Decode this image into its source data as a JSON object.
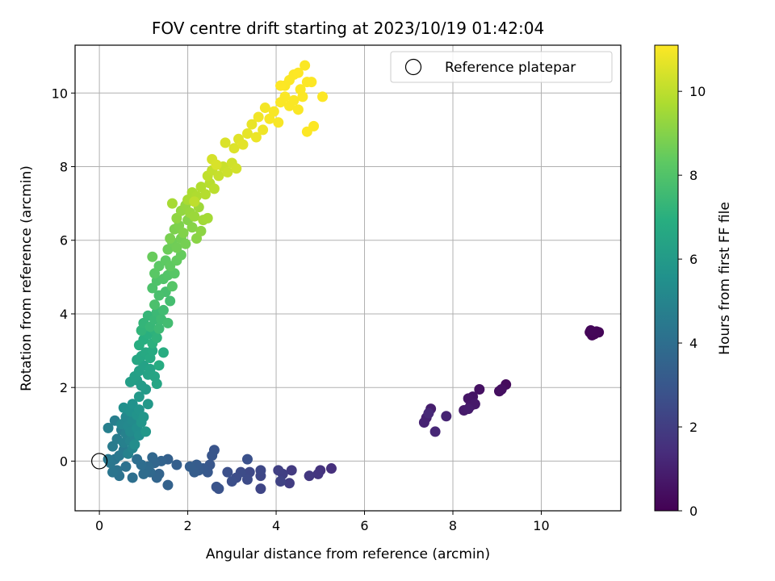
{
  "chart_data": {
    "type": "scatter",
    "title": "FOV centre drift starting at 2023/10/19 01:42:04",
    "xlabel": "Angular distance from reference (arcmin)",
    "ylabel": "Rotation from reference (arcmin)",
    "xlim": [
      -0.55,
      11.8
    ],
    "ylim": [
      -1.35,
      11.3
    ],
    "xticks": [
      0,
      2,
      4,
      6,
      8,
      10
    ],
    "yticks": [
      0,
      2,
      4,
      6,
      8,
      10
    ],
    "grid": true,
    "legend": {
      "placement": "top-right",
      "entries": [
        "Reference platepar"
      ]
    },
    "reference_point": {
      "x": 0,
      "y": 0
    },
    "colorbar": {
      "label": "Hours from first FF file",
      "range": [
        0,
        11.1
      ],
      "ticks": [
        0,
        2,
        4,
        6,
        8,
        10
      ],
      "colormap": "viridis"
    },
    "series": [
      {
        "points": [
          [
            11.1,
            3.5,
            0.05
          ],
          [
            11.2,
            3.45,
            0.08
          ],
          [
            11.3,
            3.5,
            0.1
          ],
          [
            11.15,
            3.42,
            0.12
          ],
          [
            11.25,
            3.52,
            0.15
          ],
          [
            11.12,
            3.55,
            0.18
          ],
          [
            9.2,
            2.08,
            0.3
          ],
          [
            9.05,
            1.9,
            0.4
          ],
          [
            9.1,
            1.95,
            0.45
          ],
          [
            8.6,
            1.95,
            0.5
          ],
          [
            8.45,
            1.75,
            0.6
          ],
          [
            8.35,
            1.7,
            0.65
          ],
          [
            8.4,
            1.5,
            0.7
          ],
          [
            8.5,
            1.55,
            0.75
          ],
          [
            8.25,
            1.38,
            0.8
          ],
          [
            8.35,
            1.42,
            0.85
          ],
          [
            7.5,
            1.42,
            0.9
          ],
          [
            7.4,
            1.18,
            1.0
          ],
          [
            7.35,
            1.05,
            1.05
          ],
          [
            7.85,
            1.22,
            1.1
          ],
          [
            7.6,
            0.8,
            1.2
          ],
          [
            7.45,
            1.3,
            1.25
          ],
          [
            5.25,
            -0.2,
            1.5
          ],
          [
            5.0,
            -0.25,
            1.6
          ],
          [
            4.95,
            -0.35,
            1.7
          ],
          [
            4.75,
            -0.4,
            1.8
          ],
          [
            4.35,
            -0.25,
            1.9
          ],
          [
            4.3,
            -0.6,
            2.0
          ],
          [
            4.15,
            -0.35,
            2.05
          ],
          [
            4.05,
            -0.25,
            2.1
          ],
          [
            4.1,
            -0.55,
            2.2
          ],
          [
            3.65,
            -0.75,
            2.3
          ],
          [
            3.65,
            -0.4,
            2.35
          ],
          [
            3.65,
            -0.25,
            2.4
          ],
          [
            3.4,
            -0.3,
            2.45
          ],
          [
            3.35,
            -0.5,
            2.5
          ],
          [
            3.2,
            -0.3,
            2.55
          ],
          [
            3.1,
            -0.45,
            2.6
          ],
          [
            3.0,
            -0.55,
            2.65
          ],
          [
            2.9,
            -0.3,
            2.7
          ],
          [
            3.35,
            0.05,
            2.75
          ],
          [
            2.7,
            -0.75,
            2.8
          ],
          [
            2.65,
            -0.7,
            2.85
          ],
          [
            2.6,
            0.3,
            2.9
          ],
          [
            2.55,
            0.15,
            2.95
          ],
          [
            2.5,
            -0.1,
            3.0
          ],
          [
            2.45,
            -0.3,
            3.05
          ],
          [
            2.35,
            -0.2,
            3.1
          ],
          [
            2.25,
            -0.25,
            3.15
          ],
          [
            2.2,
            -0.1,
            3.2
          ],
          [
            2.15,
            -0.3,
            3.25
          ],
          [
            2.05,
            -0.15,
            3.3
          ],
          [
            1.75,
            -0.1,
            3.35
          ],
          [
            1.55,
            0.05,
            3.4
          ],
          [
            1.55,
            -0.65,
            3.45
          ],
          [
            1.4,
            0.0,
            3.5
          ],
          [
            1.35,
            -0.35,
            3.55
          ],
          [
            1.3,
            -0.45,
            3.6
          ],
          [
            1.25,
            -0.05,
            3.65
          ],
          [
            1.2,
            0.1,
            3.7
          ],
          [
            1.15,
            -0.3,
            3.75
          ],
          [
            1.1,
            -0.15,
            3.8
          ],
          [
            1.05,
            -0.25,
            3.85
          ],
          [
            1.0,
            -0.35,
            3.9
          ],
          [
            0.95,
            -0.1,
            3.95
          ],
          [
            0.85,
            0.05,
            4.0
          ],
          [
            0.75,
            -0.45,
            4.05
          ],
          [
            0.6,
            -0.15,
            4.1
          ],
          [
            0.45,
            -0.4,
            4.15
          ],
          [
            0.4,
            -0.25,
            4.2
          ],
          [
            0.35,
            0.05,
            4.25
          ],
          [
            0.3,
            -0.3,
            4.3
          ],
          [
            0.25,
            -0.05,
            4.35
          ],
          [
            0.2,
            0.05,
            4.4
          ],
          [
            0.45,
            0.15,
            4.45
          ],
          [
            0.55,
            0.3,
            4.5
          ],
          [
            0.3,
            0.4,
            4.55
          ],
          [
            0.4,
            0.6,
            4.6
          ],
          [
            0.5,
            0.85,
            4.65
          ],
          [
            0.35,
            1.1,
            4.7
          ],
          [
            0.2,
            0.9,
            4.75
          ],
          [
            0.55,
            0.5,
            4.8
          ],
          [
            0.6,
            0.75,
            4.85
          ],
          [
            0.65,
            0.2,
            4.9
          ],
          [
            0.7,
            0.55,
            4.95
          ],
          [
            0.75,
            0.35,
            5.0
          ],
          [
            0.8,
            0.65,
            5.05
          ],
          [
            0.5,
            1.0,
            5.1
          ],
          [
            0.6,
            1.2,
            5.15
          ],
          [
            0.65,
            0.95,
            5.2
          ],
          [
            0.7,
            0.8,
            5.25
          ],
          [
            0.75,
            1.1,
            5.3
          ],
          [
            0.8,
            0.45,
            5.35
          ],
          [
            0.85,
            0.9,
            5.4
          ],
          [
            0.9,
            0.7,
            5.45
          ],
          [
            0.55,
            1.45,
            5.5
          ],
          [
            0.7,
            1.35,
            5.55
          ],
          [
            0.75,
            1.55,
            5.6
          ],
          [
            0.85,
            1.25,
            5.65
          ],
          [
            0.9,
            1.4,
            5.7
          ],
          [
            0.95,
            1.05,
            5.75
          ],
          [
            1.0,
            1.2,
            5.8
          ],
          [
            1.05,
            0.8,
            5.85
          ],
          [
            1.1,
            1.55,
            5.9
          ],
          [
            0.9,
            1.75,
            5.95
          ],
          [
            1.05,
            1.95,
            6.0
          ],
          [
            0.95,
            2.05,
            6.05
          ],
          [
            0.85,
            2.2,
            6.1
          ],
          [
            0.7,
            2.15,
            6.15
          ],
          [
            0.8,
            2.3,
            6.2
          ],
          [
            0.9,
            2.45,
            6.25
          ],
          [
            1.0,
            2.6,
            6.3
          ],
          [
            1.1,
            2.35,
            6.35
          ],
          [
            1.15,
            2.5,
            6.4
          ],
          [
            1.25,
            2.3,
            6.45
          ],
          [
            1.3,
            2.1,
            6.5
          ],
          [
            0.85,
            2.75,
            6.55
          ],
          [
            0.95,
            2.85,
            6.6
          ],
          [
            1.05,
            2.95,
            6.65
          ],
          [
            1.15,
            2.8,
            6.7
          ],
          [
            1.2,
            3.0,
            6.75
          ],
          [
            1.35,
            2.6,
            6.8
          ],
          [
            1.45,
            2.95,
            6.85
          ],
          [
            0.9,
            3.15,
            6.9
          ],
          [
            1.0,
            3.3,
            6.95
          ],
          [
            1.1,
            3.45,
            7.0
          ],
          [
            1.2,
            3.2,
            7.05
          ],
          [
            1.25,
            3.55,
            7.1
          ],
          [
            1.3,
            3.35,
            7.15
          ],
          [
            0.95,
            3.55,
            7.2
          ],
          [
            1.0,
            3.75,
            7.25
          ],
          [
            1.1,
            3.95,
            7.3
          ],
          [
            1.15,
            3.65,
            7.35
          ],
          [
            1.25,
            3.85,
            7.4
          ],
          [
            1.3,
            4.05,
            7.45
          ],
          [
            1.35,
            3.6,
            7.5
          ],
          [
            1.4,
            3.85,
            7.55
          ],
          [
            1.45,
            4.1,
            7.6
          ],
          [
            1.55,
            3.75,
            7.65
          ],
          [
            1.6,
            4.35,
            7.7
          ],
          [
            1.5,
            4.6,
            7.75
          ],
          [
            1.35,
            4.5,
            7.8
          ],
          [
            1.25,
            4.25,
            7.85
          ],
          [
            1.2,
            4.7,
            7.9
          ],
          [
            1.3,
            4.9,
            7.95
          ],
          [
            1.45,
            4.95,
            8.0
          ],
          [
            1.55,
            5.05,
            8.05
          ],
          [
            1.65,
            4.75,
            8.1
          ],
          [
            1.7,
            5.1,
            8.15
          ],
          [
            1.25,
            5.1,
            8.2
          ],
          [
            1.35,
            5.3,
            8.25
          ],
          [
            1.5,
            5.45,
            8.3
          ],
          [
            1.6,
            5.3,
            8.35
          ],
          [
            1.75,
            5.45,
            8.4
          ],
          [
            1.85,
            5.6,
            8.45
          ],
          [
            1.2,
            5.55,
            8.5
          ],
          [
            1.55,
            5.75,
            8.55
          ],
          [
            1.65,
            5.95,
            8.6
          ],
          [
            1.75,
            5.8,
            8.65
          ],
          [
            1.85,
            6.05,
            8.7
          ],
          [
            1.95,
            5.9,
            8.75
          ],
          [
            1.6,
            6.05,
            8.8
          ],
          [
            1.7,
            6.3,
            8.85
          ],
          [
            1.8,
            6.4,
            8.9
          ],
          [
            1.9,
            6.2,
            8.95
          ],
          [
            2.0,
            6.55,
            9.0
          ],
          [
            2.1,
            6.35,
            9.05
          ],
          [
            2.2,
            6.05,
            9.1
          ],
          [
            2.3,
            6.25,
            9.15
          ],
          [
            1.75,
            6.6,
            9.2
          ],
          [
            1.85,
            6.8,
            9.25
          ],
          [
            1.95,
            6.95,
            9.3
          ],
          [
            2.05,
            6.75,
            9.35
          ],
          [
            2.15,
            6.65,
            9.4
          ],
          [
            2.25,
            6.9,
            9.45
          ],
          [
            2.35,
            6.55,
            9.5
          ],
          [
            2.45,
            6.6,
            9.55
          ],
          [
            1.65,
            7.0,
            9.6
          ],
          [
            2.0,
            7.1,
            9.65
          ],
          [
            2.1,
            7.3,
            9.7
          ],
          [
            2.2,
            7.2,
            9.75
          ],
          [
            2.3,
            7.45,
            9.8
          ],
          [
            2.4,
            7.25,
            9.85
          ],
          [
            2.5,
            7.55,
            9.9
          ],
          [
            2.6,
            7.4,
            9.95
          ],
          [
            2.15,
            7.05,
            10.0
          ],
          [
            2.45,
            7.75,
            10.05
          ],
          [
            2.55,
            7.9,
            10.1
          ],
          [
            2.7,
            7.75,
            10.15
          ],
          [
            2.8,
            8.0,
            10.2
          ],
          [
            2.9,
            7.85,
            10.25
          ],
          [
            3.0,
            8.1,
            10.3
          ],
          [
            3.1,
            7.95,
            10.35
          ],
          [
            2.55,
            8.2,
            10.4
          ],
          [
            2.65,
            8.05,
            10.45
          ],
          [
            2.85,
            8.65,
            10.5
          ],
          [
            3.05,
            8.5,
            10.55
          ],
          [
            3.15,
            8.75,
            10.6
          ],
          [
            3.25,
            8.6,
            10.65
          ],
          [
            3.35,
            8.9,
            10.7
          ],
          [
            3.45,
            9.15,
            10.75
          ],
          [
            3.55,
            8.8,
            10.8
          ],
          [
            3.7,
            9.0,
            10.85
          ],
          [
            3.6,
            9.35,
            10.9
          ],
          [
            3.75,
            9.6,
            10.95
          ],
          [
            3.85,
            9.3,
            11.0
          ],
          [
            3.95,
            9.5,
            11.0
          ],
          [
            4.05,
            9.2,
            11.0
          ],
          [
            4.1,
            9.75,
            11.05
          ],
          [
            4.2,
            9.9,
            11.05
          ],
          [
            4.3,
            9.65,
            11.05
          ],
          [
            4.4,
            9.8,
            11.05
          ],
          [
            4.5,
            9.55,
            11.05
          ],
          [
            4.6,
            9.9,
            11.06
          ],
          [
            4.2,
            10.2,
            11.06
          ],
          [
            4.3,
            10.35,
            11.06
          ],
          [
            4.4,
            10.5,
            11.07
          ],
          [
            4.55,
            10.1,
            11.07
          ],
          [
            4.65,
            10.75,
            11.07
          ],
          [
            4.7,
            10.3,
            11.08
          ],
          [
            4.8,
            10.3,
            11.08
          ],
          [
            4.85,
            9.1,
            11.08
          ],
          [
            4.7,
            8.95,
            11.09
          ],
          [
            5.05,
            9.9,
            11.09
          ],
          [
            4.5,
            10.55,
            11.1
          ],
          [
            4.1,
            10.2,
            11.1
          ]
        ]
      }
    ]
  }
}
